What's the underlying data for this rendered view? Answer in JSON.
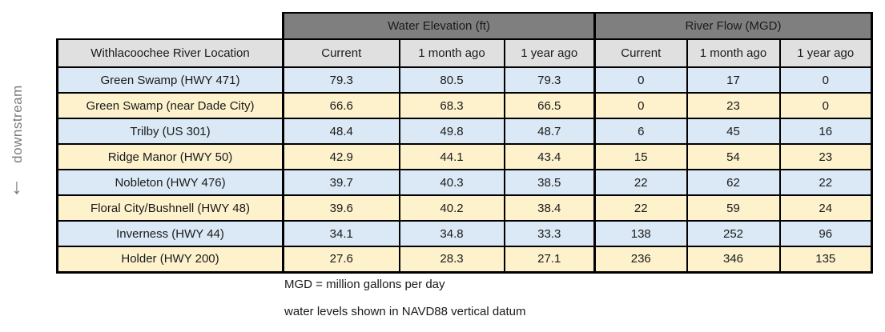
{
  "side_label": {
    "text": "downstream",
    "arrow": "↓"
  },
  "footnotes": [
    "MGD = million gallons per day",
    "water levels shown in NAVD88 vertical datum"
  ],
  "chart_data": {
    "type": "table",
    "corner_header": "Withlacoochee River Location",
    "groups": [
      {
        "label": "Water Elevation (ft)",
        "subcolumns": [
          "Current",
          "1 month ago",
          "1 year ago"
        ]
      },
      {
        "label": "River Flow (MGD)",
        "subcolumns": [
          "Current",
          "1 month ago",
          "1 year ago"
        ]
      }
    ],
    "rows": [
      {
        "location": "Green Swamp (HWY 471)",
        "values": [
          "79.3",
          "80.5",
          "79.3",
          "0",
          "17",
          "0"
        ]
      },
      {
        "location": "Green Swamp (near Dade City)",
        "values": [
          "66.6",
          "68.3",
          "66.5",
          "0",
          "23",
          "0"
        ]
      },
      {
        "location": "Trilby (US 301)",
        "values": [
          "48.4",
          "49.8",
          "48.7",
          "6",
          "45",
          "16"
        ]
      },
      {
        "location": "Ridge Manor (HWY 50)",
        "values": [
          "42.9",
          "44.1",
          "43.4",
          "15",
          "54",
          "23"
        ]
      },
      {
        "location": "Nobleton (HWY 476)",
        "values": [
          "39.7",
          "40.3",
          "38.5",
          "22",
          "62",
          "22"
        ]
      },
      {
        "location": "Floral City/Bushnell (HWY 48)",
        "values": [
          "39.6",
          "40.2",
          "38.4",
          "22",
          "59",
          "24"
        ]
      },
      {
        "location": "Inverness (HWY 44)",
        "values": [
          "34.1",
          "34.8",
          "33.3",
          "138",
          "252",
          "96"
        ]
      },
      {
        "location": "Holder (HWY 200)",
        "values": [
          "27.6",
          "28.3",
          "27.1",
          "236",
          "346",
          "135"
        ]
      }
    ],
    "notes": [
      "MGD = million gallons per day",
      "water levels shown in NAVD88 vertical datum"
    ]
  },
  "colors": {
    "group_header_bg": "#7f7f7f",
    "group_header_text": "#ffffff",
    "subheader_bg": "#e0e0e0",
    "row_blue": "#dbe9f6",
    "row_cream": "#fdf2cc",
    "border": "#000000",
    "side_label_text": "#7a7a7a"
  }
}
